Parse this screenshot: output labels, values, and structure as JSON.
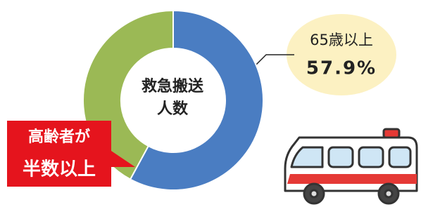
{
  "chart_data": {
    "type": "pie",
    "hole": true,
    "center_text": [
      "救急搬送",
      "人数"
    ],
    "callout": [
      "高齢者が",
      "半数以上"
    ],
    "categories": [
      "65歳以上",
      null
    ],
    "values": [
      57.9,
      42.1
    ],
    "value_labels": [
      "57.9%",
      null
    ],
    "colors": [
      "#4a7dc2",
      "#9bb955"
    ]
  }
}
